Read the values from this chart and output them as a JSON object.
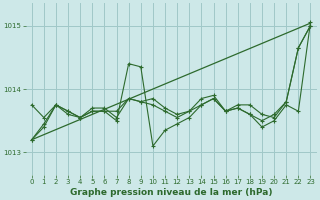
{
  "background_color": "#cde8e8",
  "grid_color": "#a0c8c8",
  "line_color": "#2d6a2d",
  "marker_color": "#2d6a2d",
  "title": "Graphe pression niveau de la mer (hPa)",
  "ylim": [
    1012.65,
    1015.35
  ],
  "xlim": [
    -0.5,
    23.5
  ],
  "yticks": [
    1013,
    1014,
    1015
  ],
  "xticks": [
    0,
    1,
    2,
    3,
    4,
    5,
    6,
    7,
    8,
    9,
    10,
    11,
    12,
    13,
    14,
    15,
    16,
    17,
    18,
    19,
    20,
    21,
    22,
    23
  ],
  "series_wavy": [
    [
      1013.2,
      1013.4,
      1013.75,
      1013.65,
      1013.55,
      1013.65,
      1013.65,
      1013.5,
      1014.4,
      1014.35,
      1013.1,
      1013.35,
      1013.45,
      1013.55,
      1013.75,
      1013.85,
      1013.65,
      1013.7,
      1013.6,
      1013.4,
      1013.5,
      1013.75,
      1013.65,
      1015.05
    ],
    [
      1013.75,
      1013.55,
      1013.75,
      1013.65,
      1013.55,
      1013.7,
      1013.7,
      1013.55,
      1013.85,
      1013.8,
      1013.75,
      1013.65,
      1013.55,
      1013.65,
      1013.85,
      1013.9,
      1013.65,
      1013.75,
      1013.75,
      1013.6,
      1013.55,
      1013.8,
      1014.65,
      1015.0
    ],
    [
      1013.2,
      1013.45,
      1013.75,
      1013.6,
      1013.55,
      1013.65,
      1013.65,
      1013.65,
      1013.85,
      1013.8,
      1013.85,
      1013.7,
      1013.6,
      1013.65,
      1013.75,
      1013.85,
      1013.65,
      1013.7,
      1013.6,
      1013.5,
      1013.6,
      1013.8,
      1014.65,
      1015.0
    ]
  ],
  "series_trend": [
    1013.2,
    1013.28,
    1013.36,
    1013.44,
    1013.52,
    1013.6,
    1013.68,
    1013.76,
    1013.84,
    1013.92,
    1014.0,
    1014.08,
    1014.16,
    1014.24,
    1014.32,
    1014.4,
    1014.48,
    1014.56,
    1014.64,
    1014.72,
    1014.8,
    1014.88,
    1014.96,
    1015.04
  ],
  "title_fontsize": 6.5,
  "tick_fontsize": 5.0
}
